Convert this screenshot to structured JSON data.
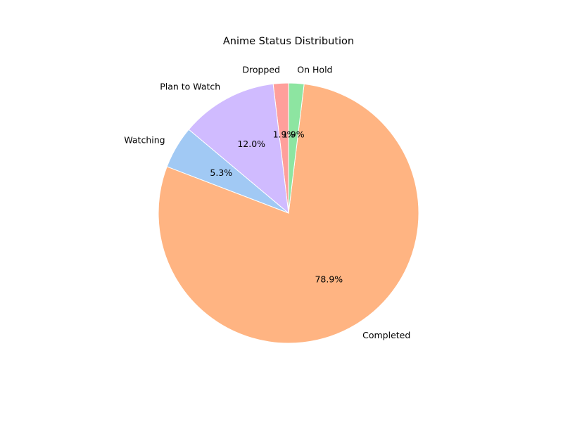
{
  "chart_data": {
    "type": "pie",
    "title": "Anime Status Distribution",
    "slices": [
      {
        "label": "Watching",
        "value": 5.3,
        "pct_label": "5.3%",
        "color": "#a1c9f4"
      },
      {
        "label": "Completed",
        "value": 78.9,
        "pct_label": "78.9%",
        "color": "#ffb482"
      },
      {
        "label": "On Hold",
        "value": 1.9,
        "pct_label": "1.9%",
        "color": "#8de5a1"
      },
      {
        "label": "Dropped",
        "value": 1.9,
        "pct_label": "1.9%",
        "color": "#ff9f9b"
      },
      {
        "label": "Plan to Watch",
        "value": 12.0,
        "pct_label": "12.0%",
        "color": "#d0bbff"
      }
    ],
    "start_angle_deg": 140,
    "direction": "counterclockwise",
    "legend": "none"
  }
}
